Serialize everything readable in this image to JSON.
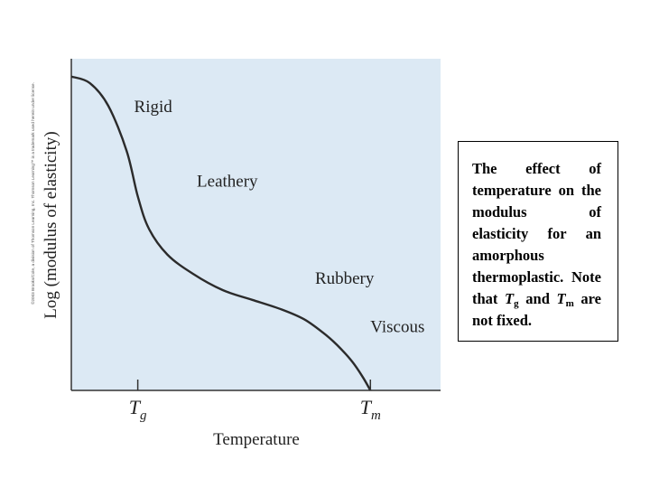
{
  "chart_data": {
    "type": "line",
    "title": "",
    "xlabel": "Temperature",
    "ylabel": "Log (modulus of elasticity)",
    "x_ticks": [
      {
        "main": "T",
        "sub": "g",
        "x": 0.18
      },
      {
        "main": "T",
        "sub": "m",
        "x": 0.81
      }
    ],
    "xlim": [
      0,
      1
    ],
    "ylim": [
      0,
      1
    ],
    "grid": false,
    "series": [
      {
        "name": "modulus",
        "x": [
          0.0,
          0.05,
          0.1,
          0.15,
          0.18,
          0.21,
          0.26,
          0.33,
          0.41,
          0.49,
          0.57,
          0.63,
          0.68,
          0.72,
          0.76,
          0.79,
          0.81
        ],
        "y": [
          0.97,
          0.95,
          0.88,
          0.74,
          0.6,
          0.5,
          0.42,
          0.36,
          0.31,
          0.28,
          0.25,
          0.22,
          0.18,
          0.14,
          0.09,
          0.04,
          0.0
        ]
      }
    ],
    "annotations": [
      {
        "text": "Rigid",
        "x": 0.17,
        "y": 0.86
      },
      {
        "text": "Leathery",
        "x": 0.34,
        "y": 0.63
      },
      {
        "text": "Rubbery",
        "x": 0.66,
        "y": 0.33
      },
      {
        "text": "Viscous",
        "x": 0.81,
        "y": 0.18
      }
    ]
  },
  "copyright": "©2003 Brooks/Cole, a division of Thomson Learning, Inc. Thomson Learning™ is a trademark used herein under license.",
  "caption": {
    "text_start": "The effect of temperature on the modulus of elasticity for an amorphous thermoplastic. Note that ",
    "t1_main": "T",
    "t1_sub": "g",
    "and_text": " and ",
    "t2_main": "T",
    "t2_sub": "m",
    "text_end": " are not fixed."
  },
  "colors": {
    "plot_bg": "#dce9f4",
    "curve": "#2b2b2b",
    "axis": "#333333"
  }
}
